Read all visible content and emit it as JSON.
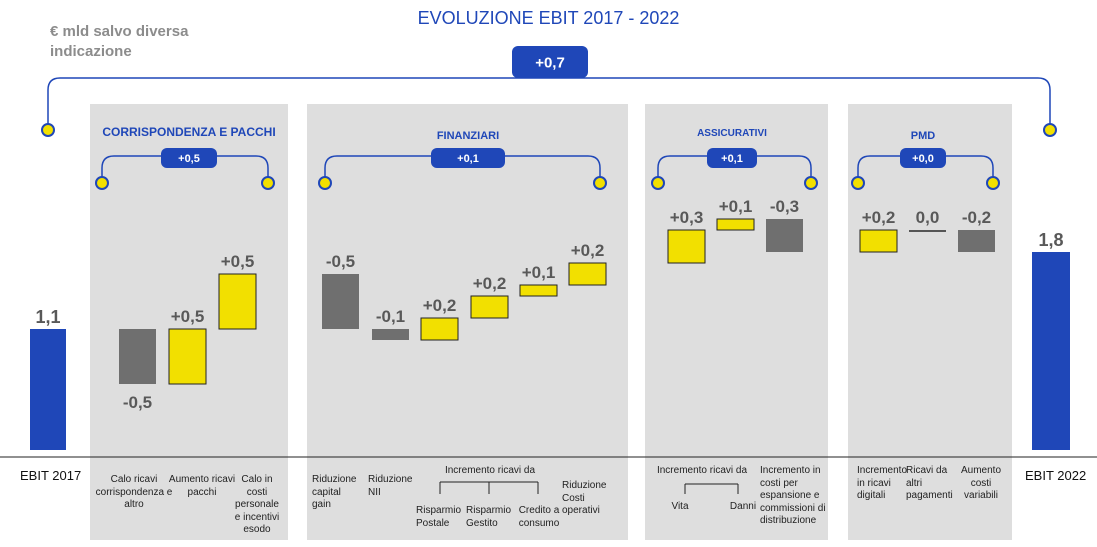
{
  "title": "EVOLUZIONE EBIT   2017 - 2022",
  "unit_note": "€ mld salvo diversa indicazione",
  "colors": {
    "blue": "#1f47b8",
    "yellow": "#f2e000",
    "gray": "#6f6f6f",
    "panel": "#dedede",
    "dot": "#f2e000"
  },
  "chart_data": {
    "type": "bar",
    "subtype": "waterfall",
    "title": "EVOLUZIONE EBIT   2017 - 2022",
    "total_change": "+0,7",
    "start": {
      "label": "EBIT 2017",
      "value": 1.1,
      "value_label": "1,1"
    },
    "end": {
      "label": "EBIT 2022",
      "value": 1.8,
      "value_label": "1,8"
    },
    "groups": [
      {
        "name": "CORRISPONDENZA  E PACCHI",
        "subtotal": "+0,5",
        "items": [
          {
            "label": "Calo ricavi corrispondenza e altro",
            "value": -0.5,
            "value_label": "-0,5"
          },
          {
            "label": "Aumento ricavi pacchi",
            "value": 0.5,
            "value_label": "+0,5"
          },
          {
            "label": "Calo in costi personale e incentivi esodo",
            "value": 0.5,
            "value_label": "+0,5"
          }
        ]
      },
      {
        "name": "FINANZIARI",
        "subtotal": "+0,1",
        "items": [
          {
            "label": "Riduzione capital gain",
            "value": -0.5,
            "value_label": "-0,5"
          },
          {
            "label": "Riduzione NII",
            "value": -0.1,
            "value_label": "-0,1"
          },
          {
            "label": "Risparmio Postale",
            "value": 0.2,
            "value_label": "+0,2"
          },
          {
            "label": "Risparmio Gestito",
            "value": 0.2,
            "value_label": "+0,2"
          },
          {
            "label": "Credito a consumo",
            "value": 0.1,
            "value_label": "+0,1"
          },
          {
            "label": "Riduzione Costi operativi",
            "value": 0.2,
            "value_label": "+0,2"
          }
        ],
        "bracket_label": "Incremento  ricavi da"
      },
      {
        "name": "ASSICURATIVI",
        "subtotal": "+0,1",
        "items": [
          {
            "label": "Vita",
            "value": 0.3,
            "value_label": "+0,3"
          },
          {
            "label": "Danni",
            "value": 0.1,
            "value_label": "+0,1"
          },
          {
            "label": "Incremento in costi per espansione e commissioni di distribuzione",
            "value": -0.3,
            "value_label": "-0,3"
          }
        ],
        "bracket_label": "Incremento  ricavi da"
      },
      {
        "name": "PMD",
        "subtotal": "+0,0",
        "items": [
          {
            "label": "Incremento in ricavi digitali",
            "value": 0.2,
            "value_label": "+0,2"
          },
          {
            "label": "Ricavi da altri pagamenti",
            "value": 0.0,
            "value_label": "0,0"
          },
          {
            "label": "Aumento costi variabili",
            "value": -0.2,
            "value_label": "-0,2"
          }
        ]
      }
    ]
  }
}
